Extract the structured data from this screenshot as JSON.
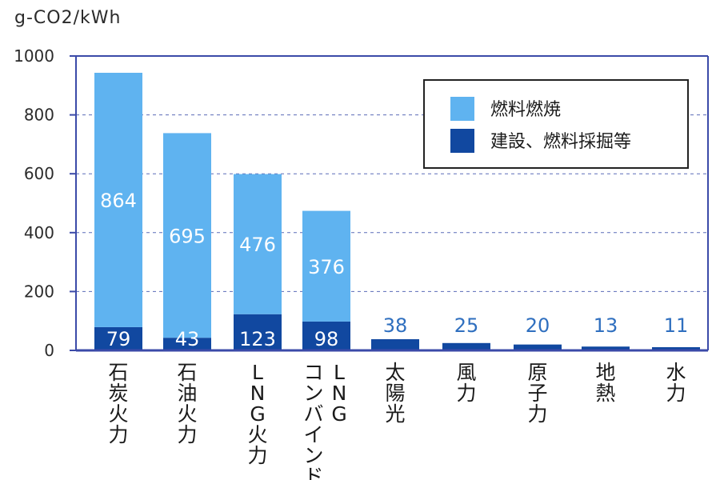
{
  "colors": {
    "axis": "#3b4aa8",
    "grid": "#5a6bb8",
    "fuel": "#5fb3f0",
    "construction": "#1148a0",
    "label_top": "#2f6fbf",
    "label_highlight": "#ee6a35",
    "text": "#1a1a1a"
  },
  "chart_data": {
    "type": "bar",
    "stacked": true,
    "unit": "g-CO2/kWh",
    "ylim": [
      0,
      1000
    ],
    "yticks": [
      "0",
      "200",
      "400",
      "600",
      "800",
      "1000"
    ],
    "grid": true,
    "legend_position": "top-right",
    "categories": [
      "石炭火力",
      "石油火力",
      "LNG火力",
      "LNG\nコンバインド",
      "太陽光",
      "風力",
      "原子力",
      "地熱",
      "水力"
    ],
    "highlight_category": "風力",
    "series": [
      {
        "name": "燃料燃焼",
        "values": [
          864,
          695,
          476,
          376,
          0,
          0,
          0,
          0,
          0
        ]
      },
      {
        "name": "建設、燃料採掘等",
        "values": [
          79,
          43,
          123,
          98,
          38,
          25,
          20,
          13,
          11
        ]
      }
    ],
    "data_labels": {
      "fuel": [
        "864",
        "695",
        "476",
        "376",
        "",
        "",
        "",
        "",
        ""
      ],
      "construction_inside": [
        "79",
        "43",
        "123",
        "98",
        "",
        "",
        "",
        "",
        ""
      ],
      "construction_top": [
        "",
        "",
        "",
        "",
        "38",
        "25",
        "20",
        "13",
        "11"
      ]
    }
  }
}
